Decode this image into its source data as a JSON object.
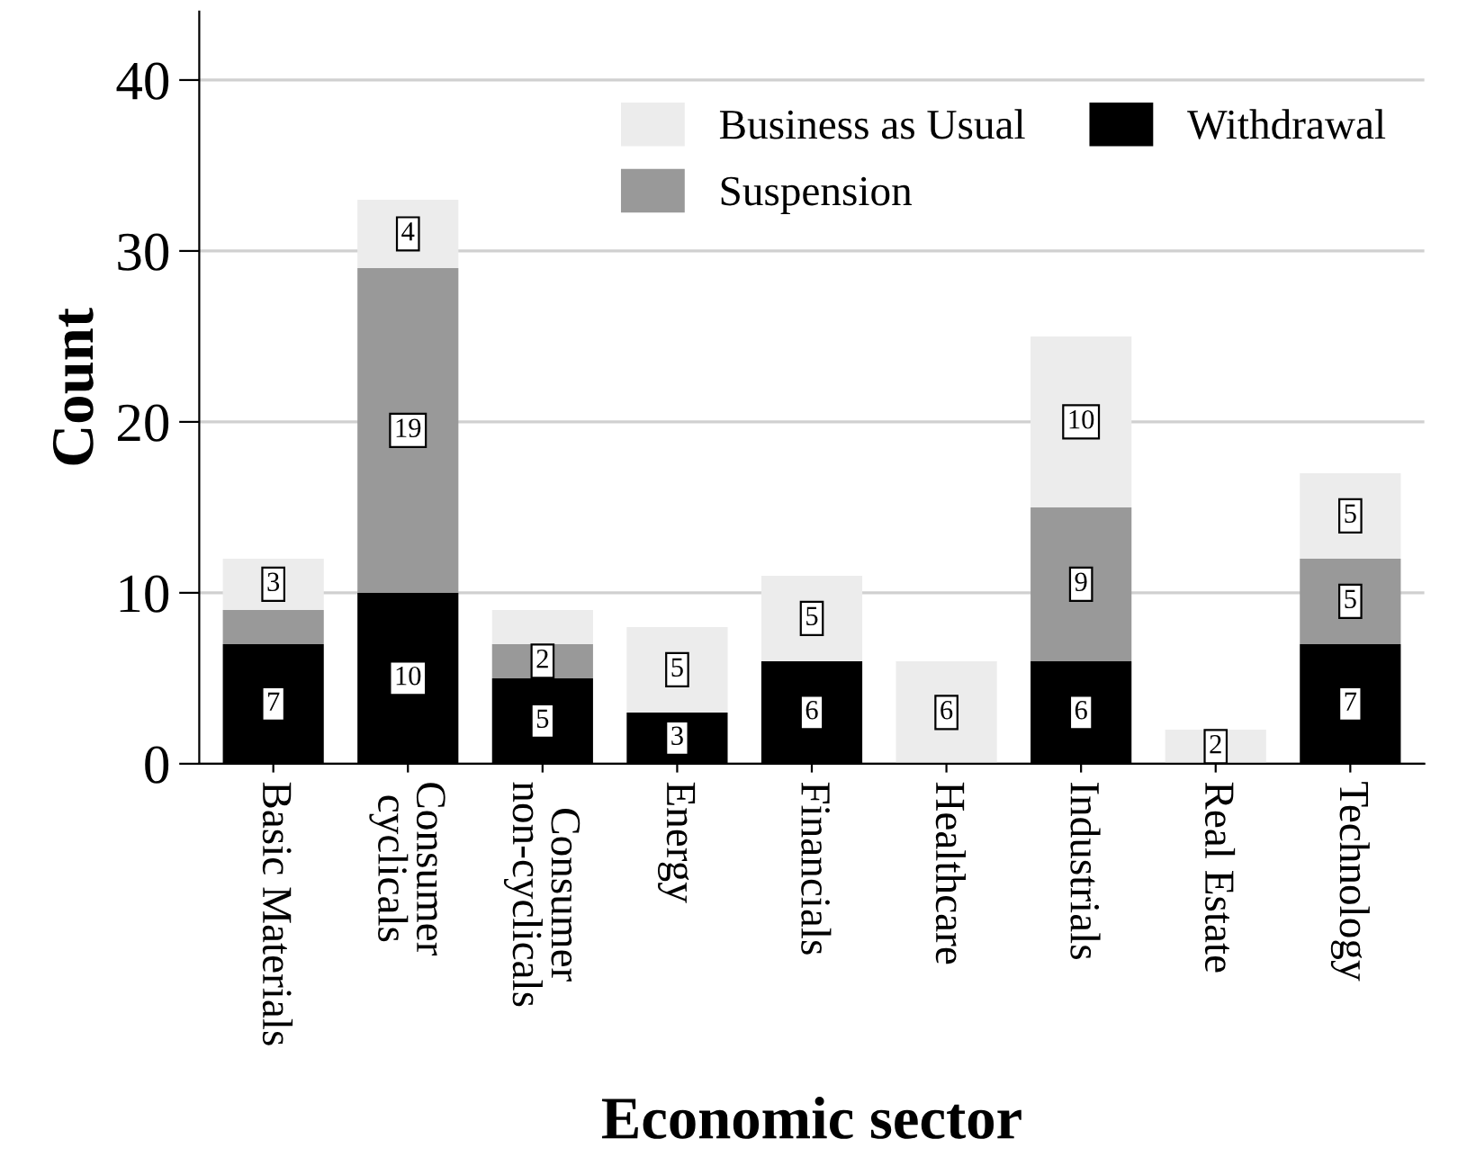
{
  "chart_data": {
    "type": "bar",
    "stacked": true,
    "xlabel": "Economic sector",
    "ylabel": "Count",
    "categories": [
      "Basic Materials",
      "Consumer\ncyclicals",
      "Consumer\nnon-cyclicals",
      "Energy",
      "Financials",
      "Healthcare",
      "Industrials",
      "Real Estate",
      "Technology"
    ],
    "series": [
      {
        "name": "Withdrawal",
        "color": "#000000",
        "values": [
          7,
          10,
          5,
          3,
          6,
          0,
          6,
          0,
          7
        ],
        "value_labels": [
          "7",
          "10",
          "5",
          "3",
          "6",
          null,
          "6",
          null,
          "7"
        ]
      },
      {
        "name": "Suspension",
        "color": "#999999",
        "values": [
          2,
          19,
          2,
          0,
          0,
          0,
          9,
          0,
          5
        ],
        "value_labels": [
          null,
          "19",
          "2",
          null,
          null,
          null,
          "9",
          null,
          "5"
        ]
      },
      {
        "name": "Business as Usual",
        "color": "#ececec",
        "values": [
          3,
          4,
          2,
          5,
          5,
          6,
          10,
          2,
          5
        ],
        "value_labels": [
          "3",
          "4",
          null,
          "5",
          "5",
          "6",
          "10",
          "2",
          "5"
        ]
      }
    ],
    "ylim": [
      0,
      44
    ],
    "yticks": [
      0,
      10,
      20,
      30,
      40
    ],
    "grid": "y",
    "legend": "top right"
  }
}
